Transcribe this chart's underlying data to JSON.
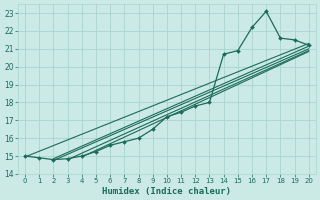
{
  "bg_color": "#cceae5",
  "grid_color": "#aad4ce",
  "line_color": "#1a6b5a",
  "xlabel": "Humidex (Indice chaleur)",
  "xlim": [
    -0.5,
    20.5
  ],
  "ylim": [
    14,
    23.5
  ],
  "xticks": [
    0,
    1,
    2,
    3,
    4,
    5,
    6,
    7,
    8,
    9,
    10,
    11,
    12,
    13,
    14,
    15,
    16,
    17,
    18,
    19,
    20
  ],
  "yticks": [
    14,
    15,
    16,
    17,
    18,
    19,
    20,
    21,
    22,
    23
  ],
  "main_x": [
    0,
    1,
    2,
    3,
    4,
    5,
    6,
    7,
    8,
    9,
    10,
    11,
    12,
    13,
    14,
    15,
    16,
    17,
    18,
    19,
    20
  ],
  "main_y": [
    15.0,
    14.9,
    14.8,
    14.85,
    15.0,
    15.25,
    15.6,
    15.8,
    16.0,
    16.5,
    17.2,
    17.45,
    17.8,
    18.0,
    20.7,
    20.9,
    22.2,
    23.1,
    21.6,
    21.5,
    21.2
  ],
  "trend_lines": [
    {
      "x0": 0,
      "y0": 14.95,
      "x1": 20,
      "y1": 21.3
    },
    {
      "x0": 2,
      "y0": 14.85,
      "x1": 20,
      "y1": 21.15
    },
    {
      "x0": 2,
      "y0": 14.75,
      "x1": 20,
      "y1": 21.0
    },
    {
      "x0": 3,
      "y0": 14.8,
      "x1": 20,
      "y1": 20.9
    },
    {
      "x0": 4,
      "y0": 14.95,
      "x1": 20,
      "y1": 20.85
    }
  ]
}
